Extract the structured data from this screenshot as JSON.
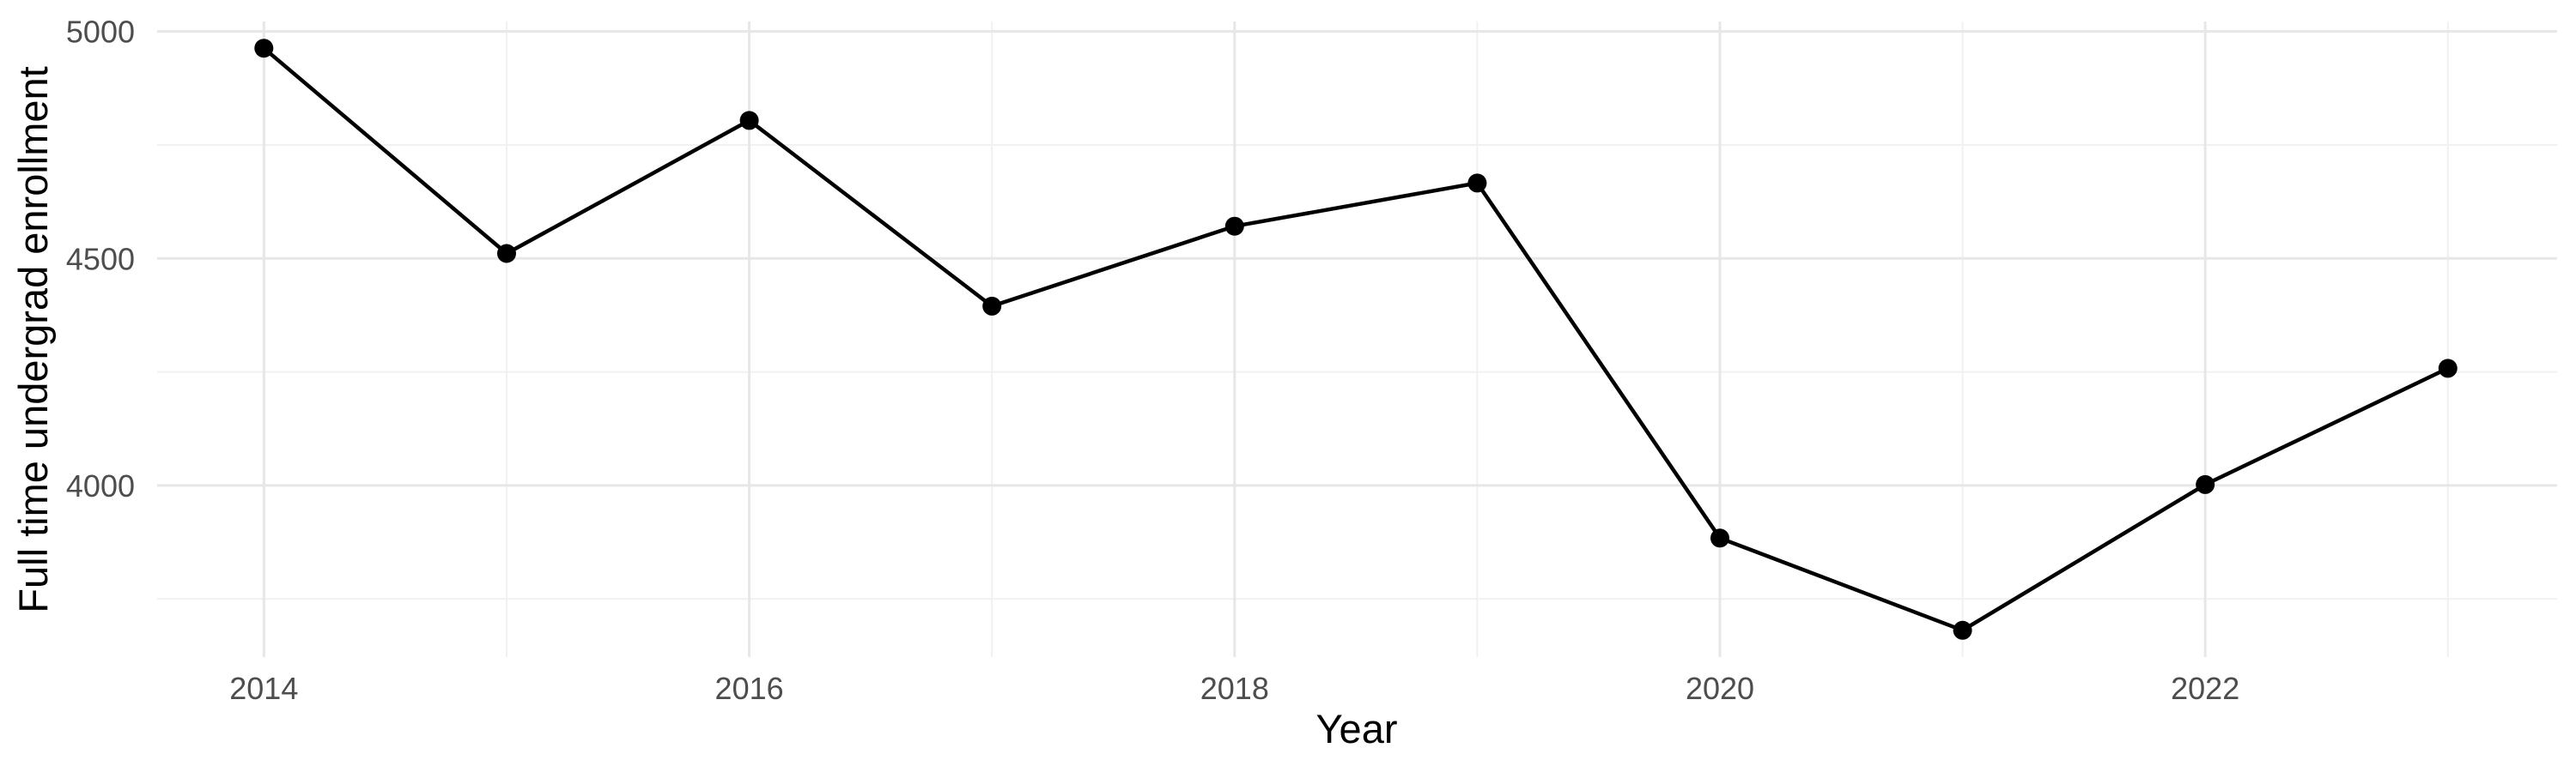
{
  "chart_data": {
    "type": "line",
    "title": "",
    "xlabel": "Year",
    "ylabel": "Full time undergrad enrollment",
    "x": [
      2014,
      2015,
      2016,
      2017,
      2018,
      2019,
      2020,
      2021,
      2022,
      2023
    ],
    "series": [
      {
        "name": "Full time undergrad enrollment",
        "values": [
          4963,
          4511,
          4804,
          4395,
          4571,
          4666,
          3884,
          3681,
          4002,
          4258
        ]
      }
    ],
    "x_tick_labels": [
      "2014",
      "2016",
      "2018",
      "2020",
      "2022"
    ],
    "x_ticks": [
      2014,
      2016,
      2018,
      2020,
      2022
    ],
    "x_minor_ticks": [
      2015,
      2017,
      2019,
      2021,
      2023
    ],
    "y_tick_labels": [
      "4000",
      "4500",
      "5000"
    ],
    "y_ticks": [
      4000,
      4500,
      5000
    ],
    "y_minor_ticks": [
      3750,
      4250,
      4750
    ],
    "xlim": [
      2013.56,
      2023.45
    ],
    "ylim": [
      3622,
      5022
    ],
    "grid": "major+minor",
    "legend_position": "none",
    "colors": {
      "line": "#000000",
      "point": "#000000",
      "grid_major": "#e7e7e7",
      "grid_minor": "#f1f1f1",
      "tick_label": "#4d4d4d",
      "axis_title": "#000000",
      "background": "#ffffff"
    }
  }
}
